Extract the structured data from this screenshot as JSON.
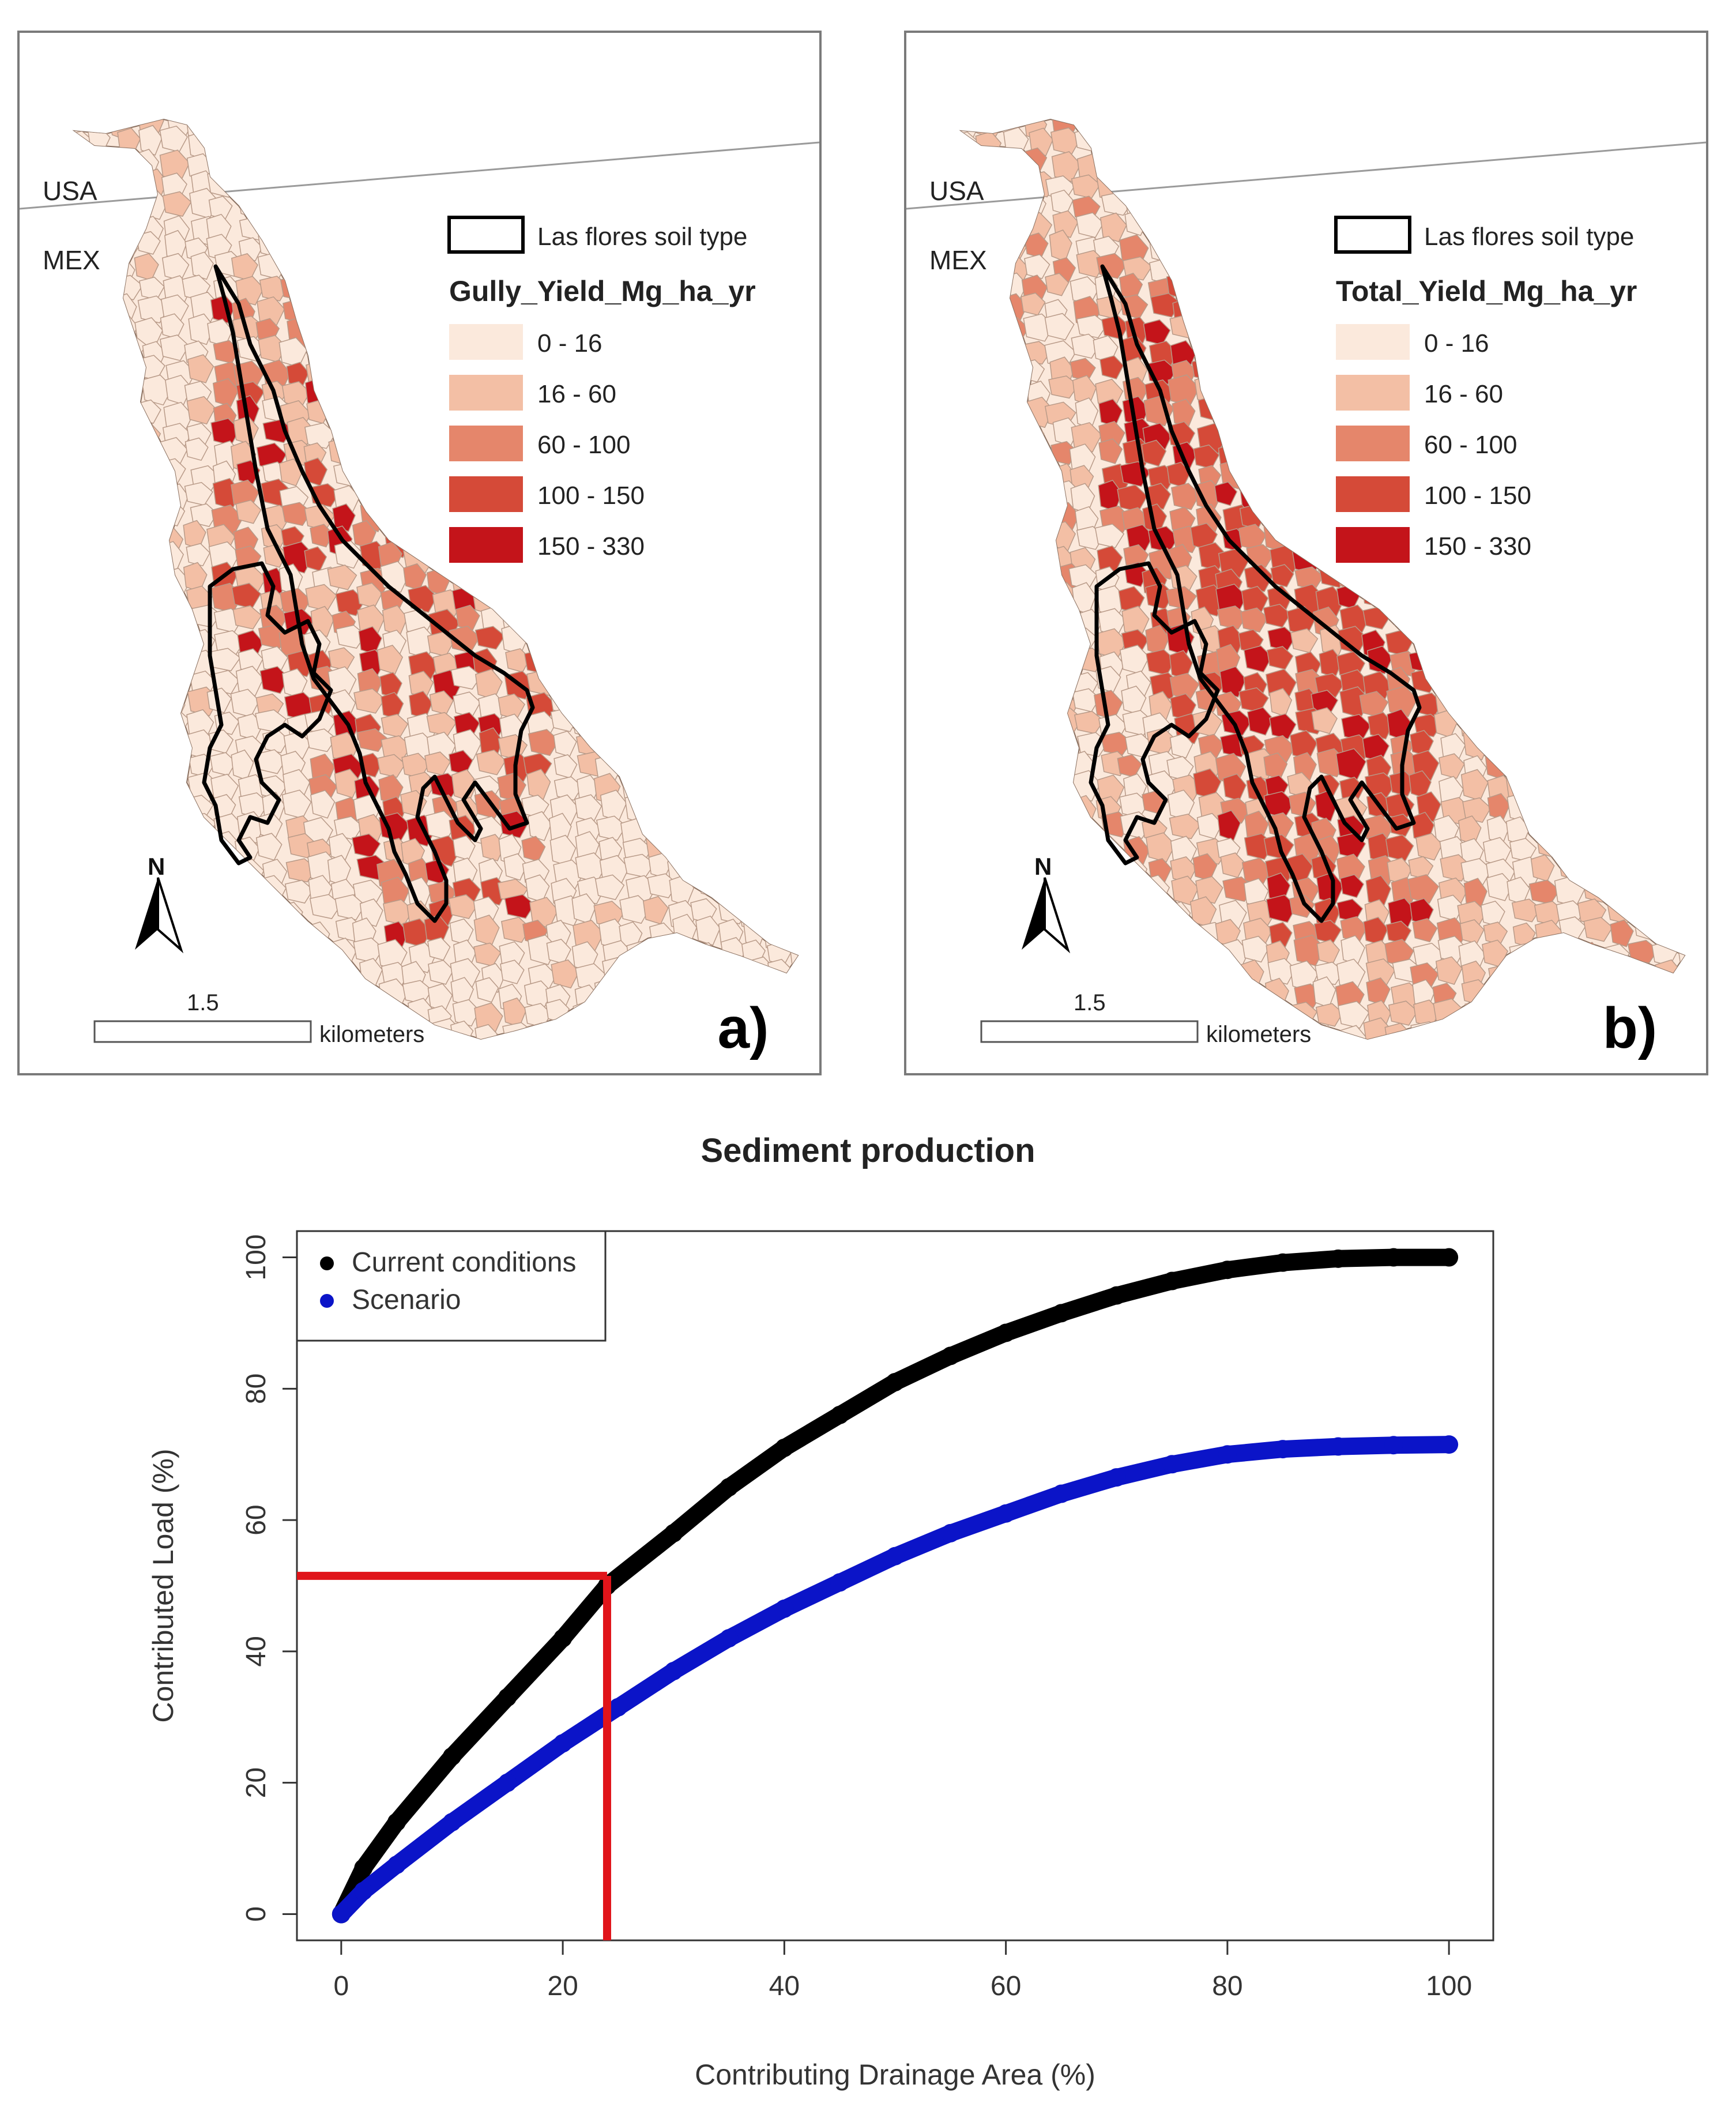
{
  "panels": [
    {
      "id": "a",
      "label": "a)",
      "legend_outline_label": "Las flores soil type",
      "legend_title": "Gully_Yield_Mg_ha_yr",
      "classes": [
        {
          "label": "0 - 16",
          "color": "#fbe9dc"
        },
        {
          "label": "16 - 60",
          "color": "#f3bfa5"
        },
        {
          "label": "60 - 100",
          "color": "#e5866b"
        },
        {
          "label": "100 - 150",
          "color": "#d54a38"
        },
        {
          "label": "150 - 330",
          "color": "#c4141a"
        }
      ],
      "country_north": "USA",
      "country_south": "MEX",
      "north_label": "N",
      "scale_value": "1.5",
      "scale_unit": "kilometers"
    },
    {
      "id": "b",
      "label": "b)",
      "legend_outline_label": "Las flores soil type",
      "legend_title": "Total_Yield_Mg_ha_yr",
      "classes": [
        {
          "label": "0 - 16",
          "color": "#fbe9dc"
        },
        {
          "label": "16 - 60",
          "color": "#f3bfa5"
        },
        {
          "label": "60 - 100",
          "color": "#e5866b"
        },
        {
          "label": "100 - 150",
          "color": "#d54a38"
        },
        {
          "label": "150 - 330",
          "color": "#c4141a"
        }
      ],
      "country_north": "USA",
      "country_south": "MEX",
      "north_label": "N",
      "scale_value": "1.5",
      "scale_unit": "kilometers"
    }
  ],
  "chart_data": {
    "type": "scatter",
    "title": "Sediment production",
    "xlabel": "Contributing Drainage Area (%)",
    "ylabel": "Contributed Load (%)",
    "xlim": [
      -4,
      104
    ],
    "ylim": [
      -4,
      104
    ],
    "xticks": [
      0,
      20,
      40,
      60,
      80,
      100
    ],
    "yticks": [
      0,
      20,
      40,
      60,
      80,
      100
    ],
    "legend_position": "top-left",
    "series": [
      {
        "name": "Current conditions",
        "color": "#000000",
        "x": [
          0,
          2,
          5,
          10,
          15,
          20,
          24,
          30,
          35,
          40,
          45,
          50,
          55,
          60,
          65,
          70,
          75,
          80,
          85,
          90,
          95,
          100
        ],
        "y": [
          0,
          7,
          14,
          24,
          33,
          42,
          50,
          58,
          65,
          71,
          76,
          81,
          85,
          88.5,
          91.5,
          94.2,
          96.4,
          98.1,
          99.2,
          99.8,
          100,
          100
        ]
      },
      {
        "name": "Scenario",
        "color": "#0b14c8",
        "x": [
          0,
          2,
          5,
          10,
          15,
          20,
          25,
          30,
          35,
          40,
          45,
          50,
          55,
          60,
          65,
          70,
          75,
          80,
          85,
          90,
          95,
          100
        ],
        "y": [
          0,
          3.5,
          7.5,
          14,
          20,
          26,
          31.5,
          37,
          42,
          46.5,
          50.5,
          54.5,
          58,
          61,
          64,
          66.5,
          68.5,
          70,
          70.8,
          71.2,
          71.4,
          71.5
        ]
      }
    ],
    "reference_lines": {
      "color": "#e0141a",
      "x": 24,
      "y": 51.5
    }
  }
}
